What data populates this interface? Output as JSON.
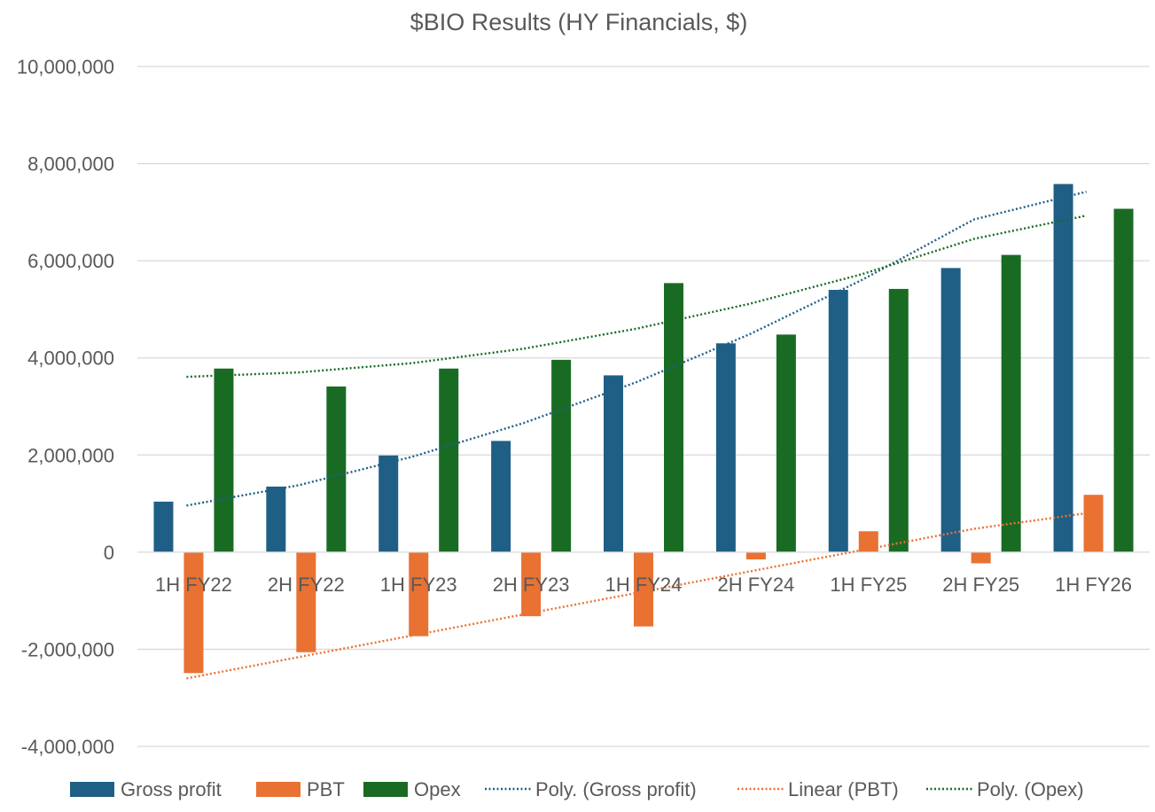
{
  "chart_data": {
    "type": "bar",
    "title": "$BIO Results (HY Financials, $)",
    "xlabel": "",
    "ylabel": "",
    "ylim": [
      -4000000,
      10000000
    ],
    "yticks": [
      -4000000,
      -2000000,
      0,
      2000000,
      4000000,
      6000000,
      8000000,
      10000000
    ],
    "ytick_labels": [
      "-4,000,000",
      "-2,000,000",
      "0",
      "2,000,000",
      "4,000,000",
      "6,000,000",
      "8,000,000",
      "10,000,000"
    ],
    "grid": true,
    "legend_position": "bottom",
    "categories": [
      "1H FY22",
      "2H FY22",
      "1H FY23",
      "2H FY23",
      "1H FY24",
      "2H FY24",
      "1H FY25",
      "2H FY25",
      "1H FY26"
    ],
    "series": [
      {
        "name": "Gross profit",
        "color": "#1f5f86",
        "values": [
          1040000,
          1350000,
          1990000,
          2290000,
          3640000,
          4300000,
          5400000,
          5850000,
          7580000
        ]
      },
      {
        "name": "PBT",
        "color": "#e97132",
        "values": [
          -2490000,
          -2060000,
          -1730000,
          -1320000,
          -1530000,
          -150000,
          430000,
          -230000,
          1180000
        ]
      },
      {
        "name": "Opex",
        "color": "#196b24",
        "values": [
          3780000,
          3410000,
          3780000,
          3960000,
          5540000,
          4480000,
          5420000,
          6120000,
          7070000
        ]
      }
    ],
    "trendlines": [
      {
        "name": "Poly. (Gross profit)",
        "series": "Gross profit",
        "kind": "polynomial",
        "color": "#1f5f86",
        "values": [
          960000,
          1380000,
          1960000,
          2660000,
          3500000,
          4480000,
          5600000,
          6850000,
          7420000
        ]
      },
      {
        "name": "Linear (PBT)",
        "series": "PBT",
        "kind": "linear",
        "color": "#e97132",
        "values": [
          -2600000,
          -2160000,
          -1720000,
          -1280000,
          -840000,
          -400000,
          40000,
          480000,
          800000
        ]
      },
      {
        "name": "Poly. (Opex)",
        "series": "Opex",
        "kind": "polynomial",
        "color": "#196b24",
        "values": [
          3610000,
          3700000,
          3890000,
          4190000,
          4600000,
          5110000,
          5720000,
          6450000,
          6930000
        ]
      }
    ],
    "legend": [
      "Gross profit",
      "PBT",
      "Opex",
      "Poly. (Gross profit)",
      "Linear (PBT)",
      "Poly. (Opex)"
    ]
  }
}
